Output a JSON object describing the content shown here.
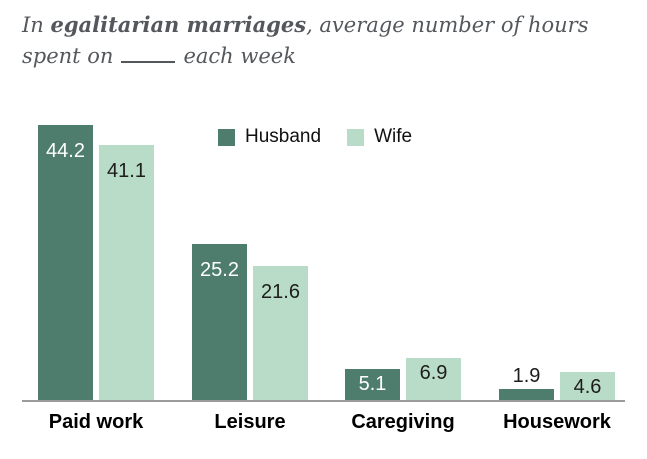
{
  "title": {
    "line1_prefix": "In ",
    "line1_bold": "egalitarian marriages",
    "line1_rest": ", average number of hours",
    "line2_before_blank": "spent on",
    "line2_after_blank": "each week"
  },
  "legend": {
    "items": [
      {
        "label": "Husband",
        "color": "#4e7d6e"
      },
      {
        "label": "Wife",
        "color": "#b8dcc7"
      }
    ]
  },
  "colors": {
    "husband_bar": "#4e7d6e",
    "wife_bar": "#b8dcc7",
    "axis_line": "#9b9b9b",
    "title_text": "#54585c",
    "label_on_dark": "#ffffff",
    "label_on_light": "#1d1d1b"
  },
  "chart_data": {
    "type": "bar",
    "title": "In egalitarian marriages, average number of hours spent on ___ each week",
    "categories": [
      "Paid work",
      "Leisure",
      "Caregiving",
      "Housework"
    ],
    "series": [
      {
        "name": "Husband",
        "color": "#4e7d6e",
        "label_color": "#ffffff",
        "values": [
          44.2,
          25.2,
          5.1,
          1.9
        ]
      },
      {
        "name": "Wife",
        "color": "#b8dcc7",
        "label_color": "#1d1d1b",
        "values": [
          41.1,
          21.6,
          6.9,
          4.6
        ]
      }
    ],
    "xlabel": "",
    "ylabel": "",
    "ylim": [
      0,
      45
    ],
    "grid": false,
    "legend_position": "top-center",
    "value_labels": true
  }
}
